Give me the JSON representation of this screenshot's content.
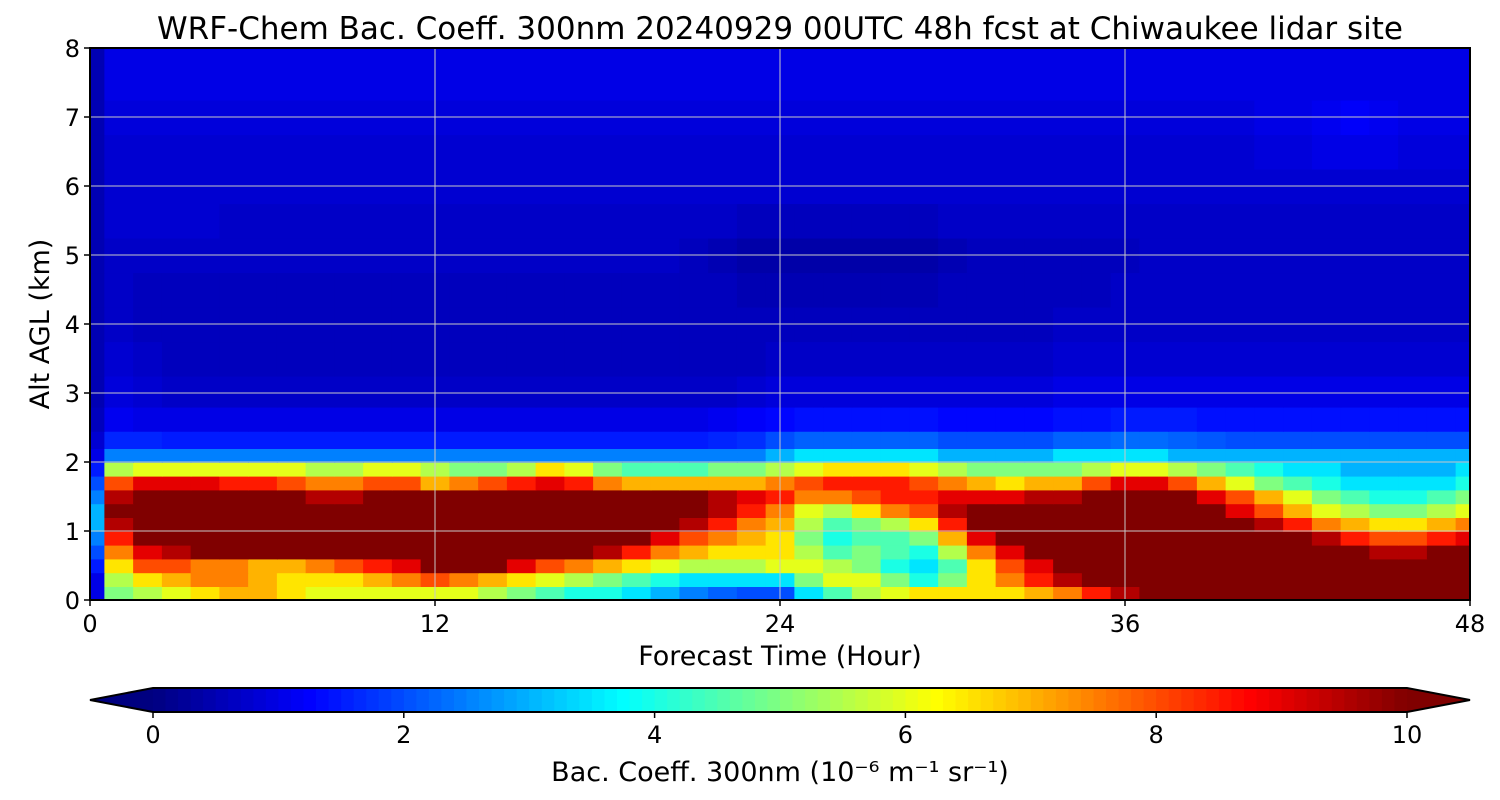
{
  "chart_data": {
    "type": "heatmap",
    "title": "WRF-Chem Bac. Coeff. 300nm  20240929 00UTC 48h fcst at Chiwaukee lidar site",
    "xlabel": "Forecast Time (Hour)",
    "ylabel": "Alt AGL (km)",
    "xlim": [
      0,
      48
    ],
    "ylim": [
      0,
      8
    ],
    "xticks": [
      0,
      12,
      24,
      36,
      48
    ],
    "yticks": [
      0,
      1,
      2,
      3,
      4,
      5,
      6,
      7,
      8
    ],
    "grid": true,
    "colorbar": {
      "label": "Bac. Coeff. 300nm  (10⁻⁶ m⁻¹ sr⁻¹)",
      "range": [
        0,
        10
      ],
      "ticks": [
        0,
        2,
        4,
        6,
        8,
        10
      ],
      "colormap": "jet",
      "extend": "both",
      "placement": "bottom"
    },
    "x": [
      0,
      1,
      2,
      3,
      4,
      5,
      6,
      7,
      8,
      9,
      10,
      11,
      12,
      13,
      14,
      15,
      16,
      17,
      18,
      19,
      20,
      21,
      22,
      23,
      24,
      25,
      26,
      27,
      28,
      29,
      30,
      31,
      32,
      33,
      34,
      35,
      36,
      37,
      38,
      39,
      40,
      41,
      42,
      43,
      44,
      45,
      46,
      47,
      48
    ],
    "y": [
      0.1,
      0.3,
      0.5,
      0.7,
      0.9,
      1.1,
      1.3,
      1.5,
      1.7,
      1.9,
      2.1,
      2.3,
      2.6,
      3.0,
      3.5,
      4.0,
      4.5,
      5.0,
      5.5,
      6.0,
      6.5,
      7.0,
      7.5,
      8.0
    ],
    "z": [
      [
        1.0,
        5.0,
        5.5,
        6.0,
        6.5,
        7.0,
        7.0,
        6.5,
        6.0,
        6.0,
        6.0,
        6.0,
        6.0,
        6.0,
        5.5,
        5.0,
        4.5,
        4.0,
        4.0,
        3.5,
        3.0,
        2.5,
        2.2,
        2.0,
        2.0,
        3.5,
        4.5,
        5.5,
        6.0,
        6.5,
        6.5,
        6.5,
        6.5,
        7.0,
        7.5,
        8.5,
        9.5,
        10.5,
        10.5,
        10.5,
        10.5,
        10.5,
        10.5,
        10.5,
        10.5,
        10.5,
        10.5,
        10.5,
        10.5
      ],
      [
        1.0,
        5.5,
        6.5,
        7.0,
        7.5,
        7.5,
        7.0,
        6.5,
        6.5,
        6.5,
        7.0,
        7.5,
        8.0,
        7.5,
        7.0,
        6.5,
        6.0,
        5.5,
        5.0,
        4.5,
        4.0,
        3.5,
        3.5,
        3.5,
        3.5,
        5.0,
        6.0,
        6.0,
        5.0,
        4.0,
        5.0,
        6.5,
        7.5,
        8.5,
        9.5,
        10.5,
        10.5,
        10.5,
        10.5,
        10.5,
        10.5,
        10.5,
        10.5,
        10.5,
        10.5,
        10.5,
        10.5,
        10.5,
        10.5
      ],
      [
        1.5,
        6.5,
        8.0,
        8.0,
        7.5,
        7.5,
        7.0,
        7.0,
        7.5,
        8.0,
        8.5,
        9.0,
        10.5,
        10.5,
        10.0,
        9.0,
        8.0,
        7.5,
        7.0,
        6.5,
        6.0,
        5.5,
        5.5,
        5.5,
        6.0,
        6.0,
        5.5,
        5.0,
        4.0,
        3.5,
        4.5,
        6.5,
        8.0,
        9.0,
        10.0,
        10.5,
        10.5,
        10.5,
        10.5,
        10.5,
        10.5,
        10.5,
        10.5,
        10.5,
        10.5,
        10.5,
        10.5,
        10.5,
        10.5
      ],
      [
        2.0,
        7.5,
        9.0,
        9.5,
        10.0,
        10.0,
        10.0,
        10.5,
        10.5,
        10.5,
        10.5,
        10.5,
        10.5,
        10.5,
        10.5,
        10.5,
        10.5,
        10.0,
        9.5,
        8.5,
        7.5,
        7.0,
        6.5,
        6.5,
        6.5,
        5.5,
        4.5,
        5.0,
        4.5,
        4.0,
        5.5,
        7.5,
        9.0,
        10.0,
        10.5,
        10.5,
        10.5,
        10.5,
        10.5,
        10.5,
        10.5,
        10.5,
        10.5,
        10.5,
        10.0,
        9.5,
        9.5,
        10.0,
        10.5
      ],
      [
        2.5,
        8.5,
        10.0,
        10.5,
        10.5,
        10.5,
        10.5,
        10.5,
        10.5,
        10.5,
        10.5,
        10.5,
        10.5,
        10.5,
        10.5,
        10.5,
        10.5,
        10.5,
        10.5,
        10.0,
        9.0,
        8.0,
        7.5,
        7.0,
        6.5,
        5.0,
        4.0,
        4.5,
        4.5,
        5.0,
        7.0,
        9.0,
        10.0,
        10.5,
        10.5,
        10.5,
        10.5,
        10.5,
        10.5,
        10.5,
        10.5,
        10.5,
        10.5,
        9.5,
        8.5,
        8.0,
        8.0,
        8.5,
        9.0
      ],
      [
        3.0,
        9.5,
        10.5,
        10.5,
        10.5,
        10.5,
        10.5,
        10.5,
        10.5,
        10.5,
        10.5,
        10.5,
        10.5,
        10.5,
        10.5,
        10.5,
        10.5,
        10.5,
        10.5,
        10.5,
        10.0,
        9.5,
        8.5,
        7.5,
        7.0,
        5.5,
        4.5,
        5.0,
        5.5,
        6.5,
        8.5,
        10.0,
        10.5,
        10.5,
        10.5,
        10.5,
        10.5,
        10.5,
        10.5,
        10.5,
        10.0,
        9.5,
        8.5,
        7.5,
        7.0,
        6.5,
        6.5,
        7.0,
        7.5
      ],
      [
        3.0,
        10.0,
        10.5,
        10.5,
        10.5,
        10.5,
        10.5,
        10.5,
        10.5,
        10.5,
        10.5,
        10.5,
        10.5,
        10.5,
        10.5,
        10.5,
        10.5,
        10.5,
        10.5,
        10.5,
        10.5,
        10.0,
        9.5,
        8.5,
        7.5,
        6.0,
        5.5,
        6.5,
        7.5,
        8.0,
        9.5,
        10.5,
        10.5,
        10.5,
        10.5,
        10.5,
        10.5,
        10.5,
        10.5,
        10.0,
        9.0,
        8.0,
        7.0,
        6.0,
        5.5,
        5.0,
        5.0,
        5.5,
        6.0
      ],
      [
        2.5,
        9.5,
        10.5,
        10.5,
        10.5,
        10.5,
        10.5,
        10.0,
        9.5,
        9.5,
        10.0,
        10.5,
        10.0,
        10.0,
        10.5,
        10.5,
        10.5,
        10.5,
        10.5,
        10.5,
        10.5,
        10.0,
        9.5,
        9.0,
        8.5,
        7.5,
        7.5,
        8.0,
        8.5,
        8.5,
        9.0,
        9.0,
        9.0,
        9.5,
        9.5,
        10.0,
        10.5,
        10.5,
        10.0,
        9.0,
        8.0,
        7.0,
        6.0,
        5.0,
        4.5,
        4.0,
        4.0,
        4.5,
        5.0
      ],
      [
        2.0,
        8.0,
        9.0,
        9.0,
        9.0,
        8.5,
        8.5,
        8.0,
        7.5,
        7.5,
        8.0,
        8.0,
        7.0,
        7.5,
        8.0,
        8.5,
        9.0,
        8.5,
        7.5,
        7.0,
        7.0,
        7.0,
        7.0,
        7.0,
        7.5,
        8.0,
        8.5,
        8.5,
        8.5,
        8.0,
        7.5,
        7.0,
        6.5,
        7.0,
        7.0,
        8.0,
        9.0,
        9.0,
        8.0,
        7.0,
        6.0,
        5.0,
        4.5,
        4.0,
        3.5,
        3.5,
        3.5,
        3.5,
        4.0
      ],
      [
        1.5,
        5.5,
        6.0,
        6.0,
        6.0,
        6.0,
        6.0,
        6.0,
        5.5,
        5.5,
        6.0,
        6.0,
        5.5,
        5.0,
        5.0,
        5.5,
        6.5,
        6.0,
        5.0,
        4.5,
        4.5,
        4.5,
        5.0,
        5.0,
        5.5,
        6.0,
        6.5,
        6.5,
        6.5,
        6.0,
        5.5,
        5.0,
        5.0,
        5.0,
        5.0,
        5.5,
        6.0,
        6.0,
        5.5,
        5.0,
        4.5,
        4.0,
        3.5,
        3.5,
        3.0,
        3.0,
        3.0,
        3.0,
        3.5
      ],
      [
        1.0,
        2.5,
        2.5,
        2.5,
        2.5,
        2.5,
        2.5,
        2.5,
        2.5,
        2.5,
        2.5,
        2.5,
        2.5,
        2.5,
        2.5,
        2.5,
        2.5,
        2.5,
        2.5,
        2.5,
        2.5,
        2.5,
        2.5,
        2.5,
        3.0,
        3.5,
        3.5,
        3.5,
        3.5,
        3.5,
        3.0,
        3.0,
        3.0,
        3.0,
        3.5,
        3.5,
        3.5,
        3.5,
        3.0,
        3.0,
        3.0,
        3.0,
        3.0,
        3.0,
        3.0,
        3.0,
        3.0,
        3.0,
        3.0
      ],
      [
        0.8,
        1.6,
        1.6,
        1.5,
        1.5,
        1.5,
        1.5,
        1.5,
        1.5,
        1.5,
        1.5,
        1.5,
        1.5,
        1.5,
        1.5,
        1.5,
        1.5,
        1.5,
        1.5,
        1.5,
        1.5,
        1.5,
        1.6,
        1.7,
        2.0,
        2.2,
        2.2,
        2.2,
        2.2,
        2.2,
        2.0,
        2.0,
        2.0,
        2.0,
        2.2,
        2.2,
        2.3,
        2.3,
        2.2,
        2.1,
        2.0,
        2.0,
        2.0,
        2.0,
        2.0,
        2.0,
        2.0,
        2.0,
        2.0
      ],
      [
        0.6,
        1.1,
        1.0,
        1.0,
        1.0,
        1.0,
        1.0,
        1.0,
        1.0,
        1.0,
        1.0,
        1.0,
        1.0,
        1.0,
        1.0,
        1.0,
        1.0,
        1.0,
        1.0,
        1.0,
        1.0,
        1.0,
        1.1,
        1.2,
        1.3,
        1.4,
        1.4,
        1.4,
        1.4,
        1.4,
        1.3,
        1.3,
        1.3,
        1.3,
        1.4,
        1.4,
        1.5,
        1.5,
        1.5,
        1.4,
        1.4,
        1.4,
        1.4,
        1.4,
        1.4,
        1.4,
        1.4,
        1.4,
        1.4
      ],
      [
        0.5,
        0.9,
        0.8,
        0.7,
        0.7,
        0.7,
        0.7,
        0.7,
        0.7,
        0.7,
        0.7,
        0.7,
        0.7,
        0.7,
        0.7,
        0.7,
        0.7,
        0.7,
        0.7,
        0.7,
        0.7,
        0.7,
        0.7,
        0.8,
        0.9,
        0.9,
        0.9,
        0.9,
        0.9,
        0.9,
        0.9,
        0.9,
        0.9,
        0.9,
        1.0,
        1.0,
        1.0,
        1.0,
        1.0,
        1.0,
        1.0,
        1.0,
        1.0,
        1.0,
        1.0,
        1.0,
        1.0,
        1.0,
        1.0
      ],
      [
        0.5,
        0.8,
        0.7,
        0.6,
        0.6,
        0.6,
        0.6,
        0.6,
        0.6,
        0.6,
        0.6,
        0.6,
        0.6,
        0.6,
        0.6,
        0.6,
        0.6,
        0.6,
        0.6,
        0.6,
        0.6,
        0.6,
        0.6,
        0.6,
        0.7,
        0.7,
        0.7,
        0.7,
        0.7,
        0.7,
        0.7,
        0.7,
        0.7,
        0.7,
        0.8,
        0.8,
        0.8,
        0.8,
        0.8,
        0.8,
        0.8,
        0.8,
        0.8,
        0.8,
        0.8,
        0.8,
        0.8,
        0.8,
        0.8
      ],
      [
        0.5,
        0.7,
        0.6,
        0.6,
        0.6,
        0.6,
        0.6,
        0.6,
        0.6,
        0.6,
        0.6,
        0.6,
        0.6,
        0.6,
        0.6,
        0.6,
        0.6,
        0.6,
        0.6,
        0.6,
        0.6,
        0.6,
        0.6,
        0.6,
        0.6,
        0.6,
        0.6,
        0.6,
        0.6,
        0.6,
        0.6,
        0.6,
        0.6,
        0.6,
        0.7,
        0.7,
        0.7,
        0.7,
        0.7,
        0.7,
        0.7,
        0.7,
        0.7,
        0.7,
        0.7,
        0.7,
        0.7,
        0.7,
        0.7
      ],
      [
        0.5,
        0.7,
        0.6,
        0.6,
        0.6,
        0.6,
        0.6,
        0.6,
        0.6,
        0.6,
        0.6,
        0.6,
        0.6,
        0.6,
        0.6,
        0.6,
        0.6,
        0.6,
        0.6,
        0.6,
        0.6,
        0.6,
        0.6,
        0.5,
        0.5,
        0.5,
        0.5,
        0.5,
        0.5,
        0.5,
        0.6,
        0.6,
        0.6,
        0.6,
        0.6,
        0.6,
        0.7,
        0.7,
        0.7,
        0.7,
        0.7,
        0.7,
        0.7,
        0.7,
        0.7,
        0.7,
        0.7,
        0.7,
        0.7
      ],
      [
        0.5,
        0.7,
        0.7,
        0.7,
        0.7,
        0.7,
        0.7,
        0.7,
        0.7,
        0.7,
        0.7,
        0.7,
        0.7,
        0.7,
        0.7,
        0.7,
        0.7,
        0.7,
        0.7,
        0.7,
        0.7,
        0.6,
        0.5,
        0.4,
        0.4,
        0.4,
        0.4,
        0.4,
        0.4,
        0.4,
        0.5,
        0.6,
        0.6,
        0.6,
        0.6,
        0.6,
        0.6,
        0.7,
        0.7,
        0.7,
        0.7,
        0.7,
        0.7,
        0.7,
        0.7,
        0.7,
        0.7,
        0.7,
        0.7
      ],
      [
        0.5,
        0.8,
        0.8,
        0.8,
        0.8,
        0.7,
        0.7,
        0.7,
        0.7,
        0.7,
        0.7,
        0.7,
        0.7,
        0.7,
        0.7,
        0.7,
        0.7,
        0.7,
        0.7,
        0.7,
        0.7,
        0.7,
        0.7,
        0.6,
        0.6,
        0.6,
        0.6,
        0.6,
        0.6,
        0.6,
        0.7,
        0.7,
        0.7,
        0.7,
        0.7,
        0.7,
        0.7,
        0.7,
        0.7,
        0.7,
        0.7,
        0.7,
        0.7,
        0.7,
        0.7,
        0.7,
        0.7,
        0.7,
        0.7
      ],
      [
        0.5,
        0.8,
        0.8,
        0.8,
        0.8,
        0.8,
        0.8,
        0.8,
        0.8,
        0.8,
        0.8,
        0.8,
        0.8,
        0.8,
        0.8,
        0.8,
        0.8,
        0.8,
        0.8,
        0.8,
        0.8,
        0.8,
        0.8,
        0.8,
        0.8,
        0.8,
        0.8,
        0.8,
        0.8,
        0.8,
        0.8,
        0.8,
        0.8,
        0.8,
        0.8,
        0.8,
        0.8,
        0.8,
        0.8,
        0.8,
        0.8,
        0.8,
        0.8,
        0.8,
        0.8,
        0.8,
        0.8,
        0.8,
        0.8
      ],
      [
        0.5,
        0.8,
        0.8,
        0.8,
        0.8,
        0.8,
        0.8,
        0.8,
        0.8,
        0.8,
        0.8,
        0.8,
        0.8,
        0.8,
        0.8,
        0.8,
        0.8,
        0.8,
        0.8,
        0.8,
        0.8,
        0.8,
        0.8,
        0.8,
        0.8,
        0.8,
        0.8,
        0.8,
        0.8,
        0.8,
        0.8,
        0.8,
        0.8,
        0.8,
        0.8,
        0.8,
        0.8,
        0.8,
        0.8,
        0.8,
        0.8,
        0.9,
        0.9,
        1.0,
        1.0,
        1.0,
        0.9,
        0.9,
        0.9
      ],
      [
        0.5,
        0.9,
        0.9,
        0.9,
        0.9,
        0.9,
        0.9,
        0.9,
        0.9,
        0.9,
        0.9,
        0.9,
        0.9,
        0.9,
        0.9,
        0.9,
        0.9,
        0.9,
        0.9,
        0.9,
        0.9,
        0.9,
        0.9,
        0.9,
        0.9,
        0.9,
        0.9,
        0.9,
        0.9,
        0.9,
        0.9,
        0.9,
        0.9,
        0.9,
        0.9,
        0.9,
        0.9,
        0.9,
        0.9,
        0.9,
        0.9,
        1.0,
        1.0,
        1.1,
        1.2,
        1.1,
        1.0,
        1.0,
        1.0
      ],
      [
        0.5,
        1.0,
        1.0,
        1.0,
        1.0,
        1.0,
        1.0,
        1.0,
        1.0,
        1.0,
        1.0,
        1.0,
        1.0,
        1.0,
        1.0,
        1.0,
        1.0,
        1.0,
        1.0,
        1.0,
        1.0,
        1.0,
        1.0,
        1.0,
        1.0,
        1.0,
        1.0,
        1.0,
        1.0,
        1.0,
        1.0,
        1.0,
        1.0,
        1.0,
        1.0,
        1.0,
        1.0,
        1.0,
        1.0,
        1.0,
        1.0,
        1.0,
        1.0,
        1.0,
        1.0,
        1.0,
        1.0,
        1.0,
        1.0
      ],
      [
        0.5,
        1.0,
        1.0,
        1.0,
        1.0,
        1.0,
        1.0,
        1.0,
        1.0,
        1.0,
        1.0,
        1.0,
        1.0,
        1.0,
        1.0,
        1.0,
        1.0,
        1.0,
        1.0,
        1.0,
        1.0,
        1.0,
        1.0,
        1.0,
        1.0,
        1.0,
        1.0,
        1.0,
        1.0,
        1.0,
        1.0,
        1.0,
        1.0,
        1.0,
        1.0,
        1.0,
        1.0,
        1.0,
        1.0,
        1.0,
        1.0,
        1.0,
        1.0,
        1.0,
        1.0,
        1.0,
        1.0,
        1.0,
        1.0
      ]
    ]
  }
}
